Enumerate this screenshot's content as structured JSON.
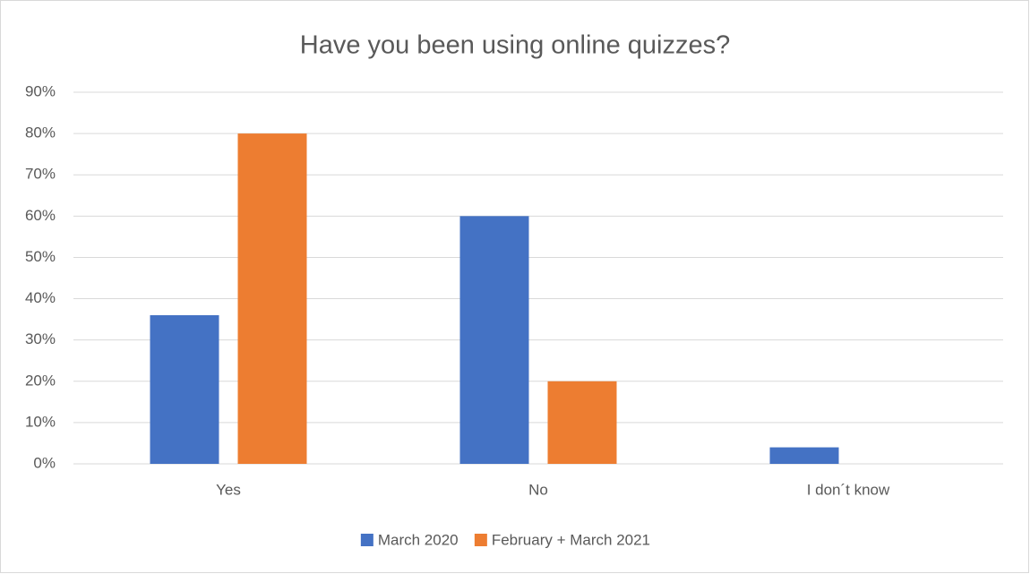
{
  "chart_data": {
    "type": "bar",
    "title": "Have you been using online quizzes?",
    "categories": [
      "Yes",
      "No",
      "I don´t know"
    ],
    "series": [
      {
        "name": "March 2020",
        "color": "#4472c4",
        "values": [
          36,
          60,
          4
        ]
      },
      {
        "name": "February + March 2021",
        "color": "#ed7d31",
        "values": [
          80,
          20,
          0
        ]
      }
    ],
    "ylim": [
      0,
      90
    ],
    "yticks": [
      {
        "value": 0,
        "label": "0%"
      },
      {
        "value": 10,
        "label": "10%"
      },
      {
        "value": 20,
        "label": "20%"
      },
      {
        "value": 30,
        "label": "30%"
      },
      {
        "value": 40,
        "label": "40%"
      },
      {
        "value": 50,
        "label": "50%"
      },
      {
        "value": 60,
        "label": "60%"
      },
      {
        "value": 70,
        "label": "70%"
      },
      {
        "value": 80,
        "label": "80%"
      },
      {
        "value": 90,
        "label": "90%"
      }
    ],
    "grid": true,
    "legend": "bottom"
  }
}
